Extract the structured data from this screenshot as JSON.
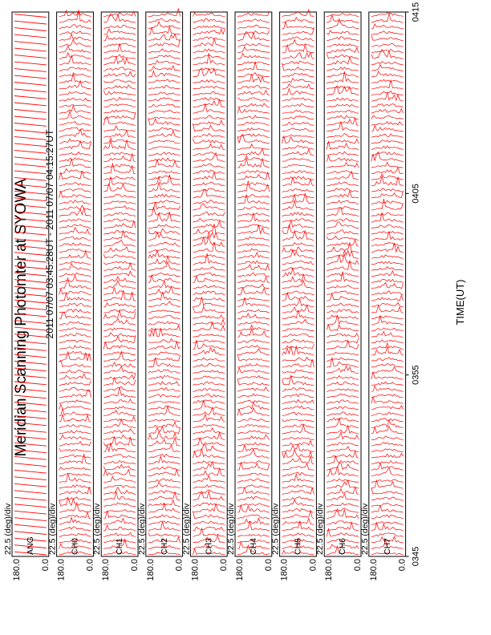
{
  "chart_data": {
    "type": "line",
    "title": "Meridian Scanning Photomter at SYOWA",
    "time_range": "2011 07/07 03:45:28UT - 2011 07/07 04:15:27UT",
    "xlabel": "TIME(UT)",
    "x_ticks": [
      "0345",
      "0355",
      "0405",
      "0415"
    ],
    "scale_label": "22.5 (deg)/div",
    "y_ticks": [
      "180.0",
      "0.0"
    ],
    "series_color": "#ff0000",
    "panels": [
      {
        "name": "ANG"
      },
      {
        "name": "CH0"
      },
      {
        "name": "CH1"
      },
      {
        "name": "CH2"
      },
      {
        "name": "CH3"
      },
      {
        "name": "CH4"
      },
      {
        "name": "CH5"
      },
      {
        "name": "CH6"
      },
      {
        "name": "CH7"
      }
    ]
  }
}
